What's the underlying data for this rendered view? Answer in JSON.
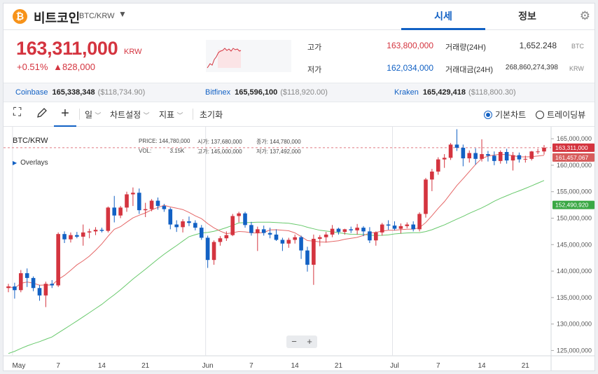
{
  "header": {
    "coin_symbol_glyph": "₿",
    "coin_name": "비트코인",
    "pair": "BTC/KRW",
    "tabs": [
      {
        "label": "시세",
        "active": true
      },
      {
        "label": "정보",
        "active": false
      }
    ]
  },
  "price": {
    "current": "163,311,000",
    "currency": "KRW",
    "change_pct": "+0.51%",
    "change_abs": "▲828,000",
    "up_color": "#d4343f",
    "down_color": "#1261c4"
  },
  "stats": {
    "high_label": "고가",
    "high_value": "163,800,000",
    "low_label": "저가",
    "low_value": "162,034,000",
    "volume_label": "거래량(24H)",
    "volume_value": "1,652.248",
    "volume_unit": "BTC",
    "amount_label": "거래대금(24H)",
    "amount_value": "268,860,274,398",
    "amount_unit": "KRW"
  },
  "exchanges": [
    {
      "name": "Coinbase",
      "price": "165,338,348",
      "usd": "($118,734.90)"
    },
    {
      "name": "Bitfinex",
      "price": "165,596,100",
      "usd": "($118,920.00)"
    },
    {
      "name": "Kraken",
      "price": "165,429,418",
      "usd": "($118,800.30)"
    }
  ],
  "toolbar": {
    "period": "일",
    "chart_settings": "차트설정",
    "indicators": "지표",
    "reset": "초기화",
    "basic_chart": "기본차트",
    "tradingview": "트레이딩뷰",
    "basic_selected": true
  },
  "chart": {
    "symbol": "BTC/KRW",
    "overlays": "Overlays",
    "legend": {
      "price_label": "PRICE:",
      "price_value": "144,780,000",
      "open_label": "시가:",
      "open_value": "137,680,000",
      "close_label": "종가:",
      "close_value": "144,780,000",
      "vol_label": "VOL:",
      "vol_value": "3.15K",
      "high_label": "고가:",
      "high_value": "145,000,000",
      "low_label": "저가:",
      "low_value": "137,492,000"
    },
    "zoom_out": "−",
    "zoom_in": "+"
  },
  "chart_data": {
    "type": "candlestick",
    "x_labels": [
      "May",
      "7",
      "14",
      "21",
      "Jun",
      "7",
      "14",
      "21",
      "Jul",
      "7",
      "14",
      "21"
    ],
    "y_ticks": [
      "165,000,000",
      "160,000,000",
      "155,000,000",
      "150,000,000",
      "145,000,000",
      "140,000,000",
      "135,000,000",
      "130,000,000",
      "125,000,000"
    ],
    "ylim": [
      124000000,
      167000000
    ],
    "ohlc": [
      [
        136.8,
        137.6,
        136.0,
        137.1
      ],
      [
        137.1,
        137.8,
        134.8,
        136.4
      ],
      [
        136.4,
        140.2,
        136.0,
        139.6
      ],
      [
        139.6,
        140.5,
        137.0,
        138.7
      ],
      [
        138.7,
        139.0,
        136.2,
        136.8
      ],
      [
        136.8,
        137.4,
        134.4,
        135.4
      ],
      [
        135.4,
        138.0,
        133.2,
        137.6
      ],
      [
        137.6,
        138.3,
        136.8,
        137.3
      ],
      [
        137.3,
        147.3,
        137.0,
        147.0
      ],
      [
        147.0,
        147.5,
        145.3,
        146.0
      ],
      [
        146.0,
        147.3,
        145.4,
        146.8
      ],
      [
        146.8,
        147.4,
        146.2,
        146.5
      ],
      [
        146.5,
        148.8,
        144.8,
        147.3
      ],
      [
        147.3,
        148.0,
        146.2,
        147.5
      ],
      [
        147.5,
        148.3,
        146.8,
        147.8
      ],
      [
        147.8,
        148.2,
        147.3,
        147.6
      ],
      [
        147.6,
        152.2,
        147.3,
        152.0
      ],
      [
        152.0,
        154.2,
        149.2,
        150.5
      ],
      [
        150.5,
        152.3,
        150.0,
        152.0
      ],
      [
        152.0,
        155.0,
        151.2,
        154.5
      ],
      [
        154.5,
        155.8,
        152.3,
        154.8
      ],
      [
        154.8,
        155.6,
        150.8,
        151.5
      ],
      [
        151.5,
        152.9,
        150.2,
        151.7
      ],
      [
        151.7,
        153.6,
        151.3,
        153.3
      ],
      [
        153.3,
        153.9,
        151.6,
        152.3
      ],
      [
        152.3,
        152.7,
        151.2,
        151.7
      ],
      [
        151.7,
        152.0,
        147.9,
        148.8
      ],
      [
        148.8,
        149.6,
        147.4,
        148.3
      ],
      [
        148.3,
        149.8,
        147.3,
        149.4
      ],
      [
        149.4,
        150.3,
        148.5,
        149.1
      ],
      [
        149.1,
        149.6,
        147.7,
        148.2
      ],
      [
        148.2,
        148.7,
        145.9,
        146.3
      ],
      [
        146.3,
        146.7,
        140.6,
        142.1
      ],
      [
        142.1,
        145.8,
        141.2,
        145.5
      ],
      [
        145.5,
        146.6,
        144.8,
        146.2
      ],
      [
        146.2,
        147.5,
        145.7,
        146.8
      ],
      [
        146.8,
        150.8,
        146.6,
        150.4
      ],
      [
        150.4,
        151.2,
        149.2,
        150.9
      ],
      [
        150.9,
        151.2,
        148.2,
        148.7
      ],
      [
        148.7,
        149.3,
        146.7,
        147.2
      ],
      [
        147.2,
        148.4,
        143.8,
        147.9
      ],
      [
        147.9,
        148.6,
        146.7,
        147.2
      ],
      [
        147.2,
        148.2,
        146.2,
        146.9
      ],
      [
        146.9,
        147.9,
        145.7,
        145.9
      ],
      [
        145.9,
        146.3,
        143.8,
        145.2
      ],
      [
        145.2,
        146.3,
        144.4,
        145.9
      ],
      [
        145.9,
        146.9,
        145.2,
        146.4
      ],
      [
        146.4,
        146.7,
        142.3,
        143.9
      ],
      [
        143.9,
        144.6,
        139.9,
        141.2
      ],
      [
        141.2,
        146.9,
        137.4,
        146.1
      ],
      [
        146.1,
        146.8,
        144.7,
        146.4
      ],
      [
        146.4,
        147.4,
        145.4,
        146.9
      ],
      [
        146.9,
        148.7,
        146.4,
        148.0
      ],
      [
        148.0,
        148.2,
        146.9,
        147.4
      ],
      [
        147.4,
        148.0,
        146.9,
        147.9
      ],
      [
        147.9,
        148.4,
        147.2,
        147.7
      ],
      [
        147.7,
        148.9,
        146.9,
        148.2
      ],
      [
        148.2,
        148.5,
        146.6,
        147.5
      ],
      [
        147.5,
        148.3,
        145.3,
        145.8
      ],
      [
        145.8,
        147.5,
        144.8,
        147.3
      ],
      [
        147.3,
        149.1,
        146.7,
        148.8
      ],
      [
        148.8,
        149.6,
        147.8,
        148.6
      ],
      [
        148.6,
        149.4,
        147.7,
        148.0
      ],
      [
        148.0,
        149.0,
        147.1,
        148.5
      ],
      [
        148.5,
        149.2,
        148.1,
        148.8
      ],
      [
        148.8,
        149.4,
        147.5,
        147.9
      ],
      [
        147.9,
        151.1,
        147.5,
        150.8
      ],
      [
        150.8,
        157.6,
        150.1,
        157.3
      ],
      [
        157.3,
        159.3,
        155.1,
        158.8
      ],
      [
        158.8,
        161.5,
        158.2,
        161.1
      ],
      [
        161.1,
        162.1,
        159.5,
        161.4
      ],
      [
        161.4,
        164.2,
        161.0,
        163.9
      ],
      [
        163.9,
        166.8,
        162.7,
        163.3
      ],
      [
        163.3,
        163.9,
        159.8,
        161.3
      ],
      [
        161.3,
        162.8,
        160.5,
        162.3
      ],
      [
        162.3,
        163.2,
        160.1,
        161.2
      ],
      [
        161.2,
        164.9,
        160.7,
        162.1
      ],
      [
        162.1,
        162.7,
        160.7,
        161.8
      ],
      [
        161.8,
        162.6,
        160.0,
        160.8
      ],
      [
        160.8,
        162.8,
        160.3,
        162.5
      ],
      [
        162.5,
        163.1,
        160.3,
        160.9
      ],
      [
        160.9,
        162.5,
        159.0,
        161.9
      ],
      [
        161.9,
        162.4,
        160.5,
        161.1
      ],
      [
        161.1,
        161.8,
        160.5,
        161.2
      ],
      [
        161.2,
        162.7,
        160.9,
        162.6
      ],
      [
        162.6,
        163.1,
        162.1,
        162.6
      ],
      [
        162.6,
        163.8,
        162.0,
        163.3
      ]
    ],
    "ma_short": {
      "color": "#e56767",
      "end_value": "161,457,067"
    },
    "ma_long": {
      "color": "#68c96c",
      "end_value": "152,490,920"
    },
    "last_price": "163,311,000"
  }
}
